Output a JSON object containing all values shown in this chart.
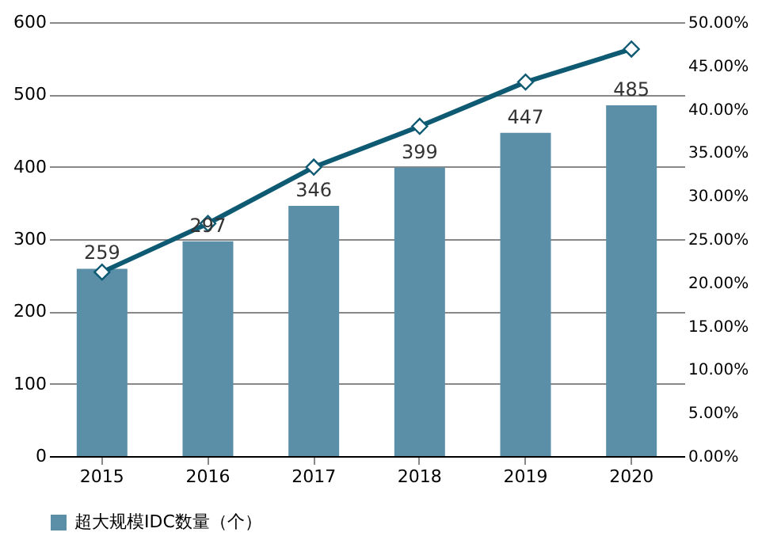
{
  "chart_data": {
    "type": "bar",
    "categories": [
      "2015",
      "2016",
      "2017",
      "2018",
      "2019",
      "2020"
    ],
    "series": [
      {
        "name": "超大规模IDC数量（个）",
        "color": "#5b8fa8",
        "values": [
          259,
          297,
          346,
          399,
          447,
          485
        ],
        "value_labels": [
          "259",
          "297",
          "346",
          "399",
          "447",
          "485"
        ]
      },
      {
        "type": "line",
        "axis": "y2",
        "color": "#0e5a73",
        "values": [
          21.2,
          26.8,
          33.3,
          38.0,
          43.1,
          46.9
        ],
        "marker": "diamond"
      }
    ],
    "ylim": [
      0,
      600
    ],
    "yticks": [
      0,
      100,
      200,
      300,
      400,
      500,
      600
    ],
    "y2lim": [
      0,
      50
    ],
    "y2ticks": [
      {
        "value": 0,
        "label": "0.00%"
      },
      {
        "value": 5,
        "label": "5.00%"
      },
      {
        "value": 10,
        "label": "10.00%"
      },
      {
        "value": 15,
        "label": "15.00%"
      },
      {
        "value": 20,
        "label": "20.00%"
      },
      {
        "value": 25,
        "label": "25.00%"
      },
      {
        "value": 30,
        "label": "30.00%"
      },
      {
        "value": 35,
        "label": "35.00%"
      },
      {
        "value": 40,
        "label": "40.00%"
      },
      {
        "value": 45,
        "label": "45.00%"
      },
      {
        "value": 50,
        "label": "50.00%"
      }
    ],
    "grid": "y",
    "legend": "bottom"
  }
}
